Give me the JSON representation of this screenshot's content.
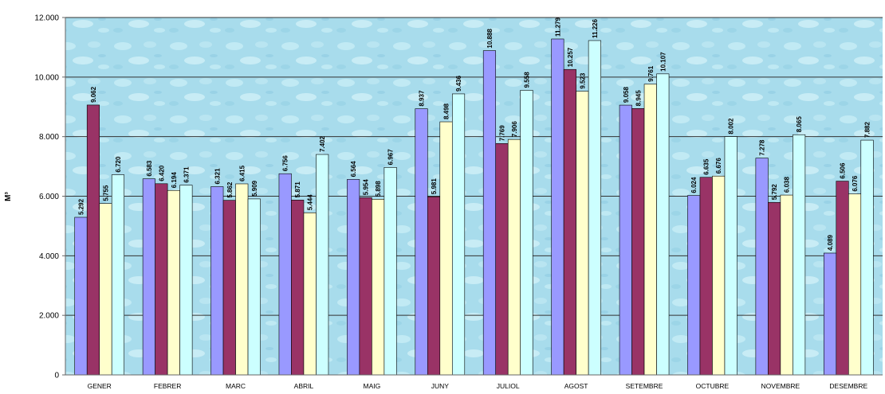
{
  "chart_data": {
    "type": "bar",
    "title": "",
    "ylabel": "M³",
    "xlabel": "",
    "ylim": [
      0,
      12000
    ],
    "yticks": [
      0,
      2000,
      4000,
      6000,
      8000,
      10000,
      12000
    ],
    "ytick_labels": [
      "0",
      "2.000",
      "4.000",
      "6.000",
      "8.000",
      "10.000",
      "12.000"
    ],
    "grid": true,
    "legend": "none",
    "categories": [
      "GENER",
      "FEBRER",
      "MARC",
      "ABRIL",
      "MAIG",
      "JUNY",
      "JULIOL",
      "AGOST",
      "SETEMBRE",
      "OCTUBRE",
      "NOVEMBRE",
      "DESEMBRE"
    ],
    "series": [
      {
        "color": "#9999ff",
        "values": [
          5292,
          6583,
          6321,
          6756,
          6564,
          8937,
          10888,
          11279,
          9058,
          6024,
          7278,
          4089
        ],
        "labels": [
          "5.292",
          "6.583",
          "6.321",
          "6.756",
          "6.564",
          "8.937",
          "10.888",
          "11.279",
          "9.058",
          "6.024",
          "7.278",
          "4.089"
        ]
      },
      {
        "color": "#993366",
        "values": [
          9062,
          6420,
          5862,
          5871,
          5954,
          5981,
          7769,
          10257,
          8945,
          6635,
          5792,
          6506
        ],
        "labels": [
          "9.062",
          "6.420",
          "5.862",
          "5.871",
          "5.954",
          "5.981",
          "7.769",
          "10.257",
          "8.945",
          "6.635",
          "5.792",
          "6.506"
        ]
      },
      {
        "color": "#ffffcc",
        "values": [
          5755,
          6194,
          6415,
          5444,
          5898,
          8498,
          7906,
          9523,
          9761,
          6676,
          6038,
          6076
        ],
        "labels": [
          "5.755",
          "6.194",
          "6.415",
          "5.444",
          "5.898",
          "8.498",
          "7.906",
          "9.523",
          "9.761",
          "6.676",
          "6.038",
          "6.076"
        ]
      },
      {
        "color": "#ccffff",
        "values": [
          6720,
          6371,
          5909,
          7402,
          6967,
          9436,
          9558,
          11226,
          10107,
          8002,
          8065,
          7882
        ],
        "labels": [
          "6.720",
          "6.371",
          "5.909",
          "7.402",
          "6.967",
          "9.436",
          "9.558",
          "11.226",
          "10.107",
          "8.002",
          "8.065",
          "7.882"
        ]
      }
    ]
  }
}
